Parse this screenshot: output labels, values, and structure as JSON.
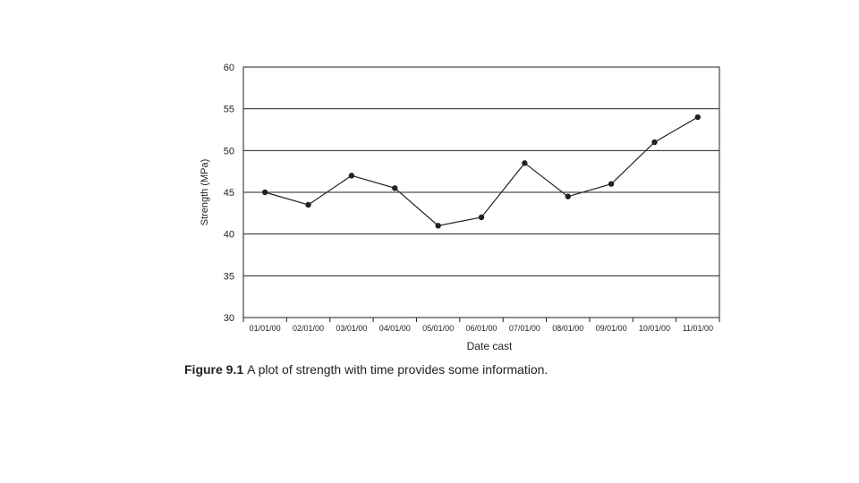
{
  "chart_data": {
    "type": "line",
    "xlabel": "Date cast",
    "ylabel": "Strength (MPa)",
    "ylim": [
      30,
      60
    ],
    "yticks": [
      30,
      35,
      40,
      45,
      50,
      55,
      60
    ],
    "grid": "horizontal",
    "legend": "none",
    "categories": [
      "01/01/00",
      "02/01/00",
      "03/01/00",
      "04/01/00",
      "05/01/00",
      "06/01/00",
      "07/01/00",
      "08/01/00",
      "09/01/00",
      "10/01/00",
      "11/01/00"
    ],
    "series": [
      {
        "values": [
          45.0,
          43.5,
          47.0,
          45.5,
          41.0,
          42.0,
          48.5,
          44.5,
          46.0,
          51.0,
          54.0
        ],
        "color": "#222222"
      }
    ]
  },
  "caption": {
    "label": "Figure 9.1",
    "text": "A plot of strength with time provides some information."
  }
}
